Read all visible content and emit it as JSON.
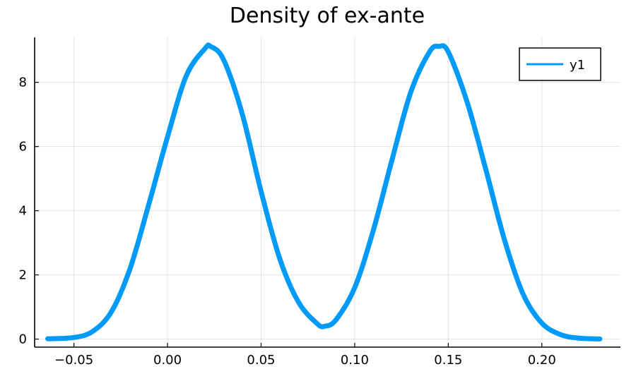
{
  "chart_data": {
    "type": "line",
    "title": "Density of ex-ante",
    "xlabel": "",
    "ylabel": "",
    "xlim": [
      -0.071,
      0.242
    ],
    "ylim": [
      -0.25,
      9.4
    ],
    "x_ticks": [
      -0.05,
      0.0,
      0.05,
      0.1,
      0.15,
      0.2
    ],
    "x_tick_labels": [
      "−0.05",
      "0.00",
      "0.05",
      "0.10",
      "0.15",
      "0.20"
    ],
    "y_ticks": [
      0,
      2,
      4,
      6,
      8
    ],
    "y_tick_labels": [
      "0",
      "2",
      "4",
      "6",
      "8"
    ],
    "grid": true,
    "legend": {
      "position": "top-right",
      "entries": [
        "y1"
      ]
    },
    "series": [
      {
        "name": "y1",
        "color": "#009AFA",
        "x": [
          -0.064,
          -0.05,
          -0.04,
          -0.03,
          -0.02,
          -0.01,
          0.0,
          0.01,
          0.02,
          0.023,
          0.03,
          0.04,
          0.05,
          0.06,
          0.07,
          0.08,
          0.084,
          0.09,
          0.1,
          0.11,
          0.12,
          0.13,
          0.14,
          0.145,
          0.15,
          0.16,
          0.17,
          0.18,
          0.19,
          0.2,
          0.21,
          0.22,
          0.231
        ],
        "y": [
          0.01,
          0.05,
          0.24,
          0.85,
          2.2,
          4.2,
          6.3,
          8.2,
          9.05,
          9.12,
          8.7,
          7.0,
          4.6,
          2.5,
          1.15,
          0.48,
          0.4,
          0.6,
          1.6,
          3.4,
          5.6,
          7.7,
          8.95,
          9.12,
          8.95,
          7.4,
          5.3,
          3.1,
          1.4,
          0.5,
          0.14,
          0.03,
          0.005
        ]
      }
    ]
  }
}
